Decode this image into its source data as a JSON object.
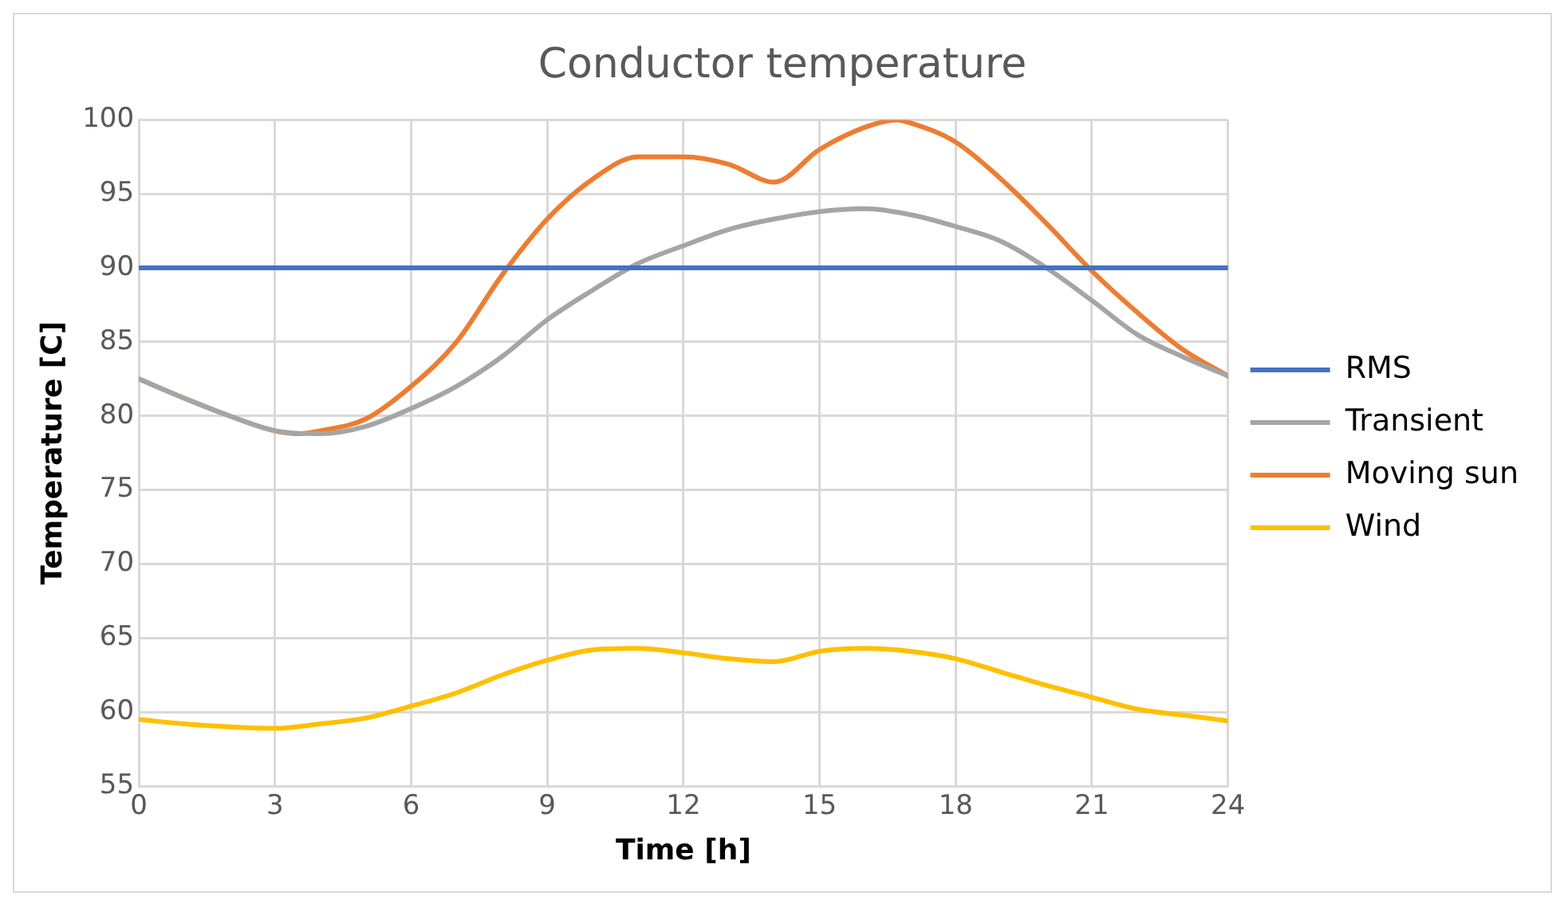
{
  "chart_data": {
    "type": "line",
    "title": "Conductor temperature",
    "xlabel": "Time [h]",
    "ylabel": "Temperature [C]",
    "xlim": [
      0,
      24
    ],
    "xticks": [
      0,
      3,
      6,
      9,
      12,
      15,
      18,
      21,
      24
    ],
    "ylim": [
      55,
      100
    ],
    "yticks": [
      55,
      60,
      65,
      70,
      75,
      80,
      85,
      90,
      95,
      100
    ],
    "grid": true,
    "legend": "right",
    "marker": "none",
    "line_style": "solid",
    "series": [
      {
        "name": "RMS",
        "color": "#4472c4",
        "x": [
          0,
          24
        ],
        "values": [
          90,
          90
        ]
      },
      {
        "name": "Transient",
        "color": "#a5a5a5",
        "x": [
          0,
          1,
          2,
          3,
          4,
          5,
          6,
          7,
          8,
          9,
          10,
          11,
          12,
          13,
          14,
          15,
          16,
          17,
          18,
          19,
          20,
          21,
          22,
          23,
          24
        ],
        "values": [
          82.5,
          81.2,
          80,
          79,
          78.8,
          79.3,
          80.5,
          82,
          84,
          86.5,
          88.5,
          90.3,
          91.5,
          92.6,
          93.3,
          93.8,
          94,
          93.6,
          92.8,
          91.8,
          90,
          87.8,
          85.5,
          84,
          82.7
        ]
      },
      {
        "name": "Moving sun",
        "color": "#ed7d31",
        "x": [
          0,
          1,
          2,
          3,
          3.5,
          4,
          5,
          6,
          7,
          8,
          9,
          10,
          11,
          12,
          13,
          14,
          15,
          16,
          16.7,
          17,
          18,
          19,
          20,
          21,
          22,
          23,
          24
        ],
        "values": [
          82.5,
          81.2,
          80,
          79,
          78.8,
          79,
          79.8,
          82,
          85,
          89.5,
          93.3,
          96,
          97.5,
          97.5,
          97,
          95.8,
          98,
          99.5,
          100,
          99.8,
          98.5,
          96,
          93,
          89.8,
          87,
          84.5,
          82.7
        ]
      },
      {
        "name": "Wind",
        "color": "#ffc000",
        "x": [
          0,
          1,
          2,
          3,
          4,
          5,
          6,
          7,
          8,
          9,
          10,
          11,
          12,
          13,
          14,
          15,
          16,
          17,
          18,
          19,
          20,
          21,
          22,
          23,
          24
        ],
        "values": [
          59.5,
          59.2,
          59,
          58.9,
          59.2,
          59.6,
          60.4,
          61.3,
          62.5,
          63.5,
          64.2,
          64.3,
          64,
          63.6,
          63.4,
          64.1,
          64.3,
          64.1,
          63.6,
          62.7,
          61.8,
          61,
          60.2,
          59.8,
          59.4
        ]
      }
    ]
  }
}
